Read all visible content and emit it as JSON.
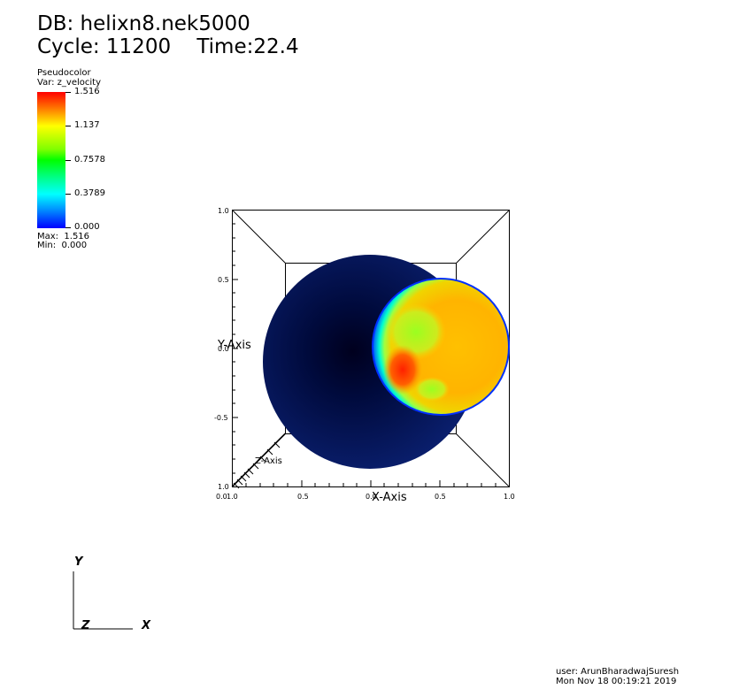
{
  "header": {
    "db_line": "DB: helixn8.nek5000",
    "cycle_line": "Cycle: 11200    Time:22.4"
  },
  "legend": {
    "plot_type": "Pseudocolor",
    "variable": "Var: z_velocity",
    "ticks": [
      "1.516",
      "1.137",
      "0.7578",
      "0.3789",
      "0.000"
    ],
    "max_label": "Max:  1.516",
    "min_label": "Min:  0.000",
    "colormap": [
      "#0000ff",
      "#00ffff",
      "#00ff00",
      "#ffff00",
      "#ff0000"
    ]
  },
  "plot": {
    "y_axis_title": "Y-Axis",
    "x_axis_title": "X-Axis",
    "z_axis_title": "Z-Axis",
    "y_ticks": [
      "1.0",
      "0.5",
      "0.0",
      "-0.5",
      "1.0"
    ],
    "x_ticks": [
      "1.0",
      "0.5",
      "0.0",
      "0.5",
      "1.0"
    ],
    "corner_label": "0.0"
  },
  "triad": {
    "x": "X",
    "y": "Y",
    "z": "Z"
  },
  "footer": {
    "user": "user: ArunBharadwajSuresh",
    "date": "Mon Nov 18 00:19:21 2019"
  }
}
